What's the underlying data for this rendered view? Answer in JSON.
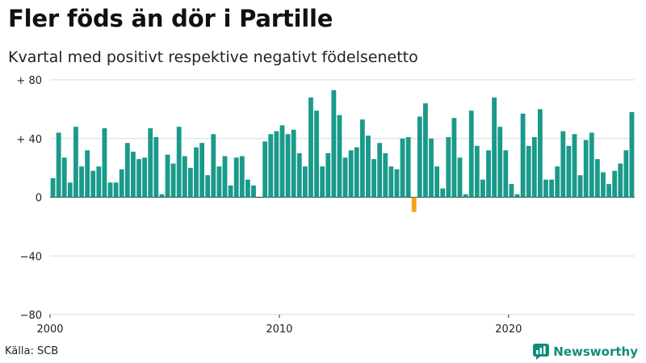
{
  "header": {
    "title": "Fler föds än dör i Partille",
    "subtitle": "Kvartal med positivt respektive negativt födelsenetto"
  },
  "footer": {
    "source": "Källa: SCB",
    "brand": "Newsworthy"
  },
  "colors": {
    "positive": "#1a9a8a",
    "negative": "#f5a11a",
    "grid": "#d9d9d9",
    "brand": "#0f8c7e"
  },
  "chart_data": {
    "type": "bar",
    "title": "Fler föds än dör i Partille",
    "subtitle": "Kvartal med positivt respektive negativt födelsenetto",
    "xlabel": "",
    "ylabel": "",
    "ylim": [
      -80,
      80
    ],
    "yticks": [
      80,
      40,
      0,
      -40,
      -80
    ],
    "ytick_labels": [
      "+ 80",
      "+ 40",
      "0",
      "−40",
      "−80"
    ],
    "xticks": [
      "2000",
      "2010",
      "2020"
    ],
    "start_period": "2000 Q1",
    "grid": true,
    "series": [
      {
        "values": [
          13,
          44,
          27,
          10,
          48,
          21,
          32,
          18,
          21,
          47,
          10,
          10,
          19,
          37,
          31,
          26,
          27,
          47,
          41,
          2,
          29,
          23,
          48,
          28,
          20,
          34,
          37,
          15,
          43,
          21,
          28,
          8,
          27,
          28,
          12,
          8,
          0,
          38,
          43,
          45,
          49,
          43,
          46,
          30,
          21,
          68,
          59,
          21,
          30,
          73,
          56,
          27,
          32,
          34,
          53,
          42,
          26,
          37,
          30,
          21,
          19,
          40,
          41,
          -10,
          55,
          64,
          40,
          21,
          6,
          41,
          54,
          27,
          2,
          59,
          35,
          12,
          32,
          68,
          48,
          32,
          9,
          2,
          57,
          35,
          41,
          60,
          12,
          12,
          21,
          45,
          35,
          43,
          15,
          39,
          44,
          26,
          17,
          9,
          18,
          23,
          32,
          58
        ]
      }
    ]
  }
}
